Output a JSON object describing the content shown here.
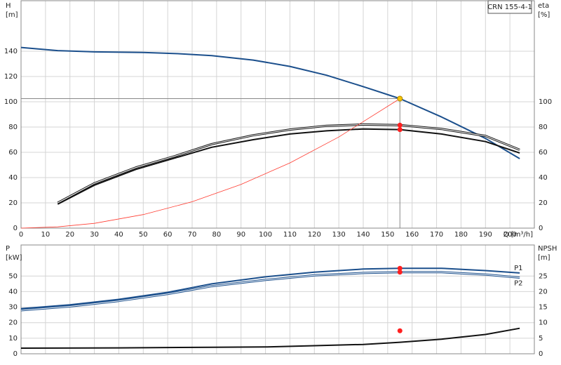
{
  "chart_data": [
    {
      "type": "line",
      "model": "CRN 155-4-1",
      "x_label": "Q [m³/h]",
      "y_label": [
        "H",
        "[m]"
      ],
      "y2_label": [
        "eta",
        "[%]"
      ],
      "xlim": [
        0,
        210
      ],
      "ylim": [
        0,
        180
      ],
      "y2lim": [
        0,
        180
      ],
      "xticks": [
        0,
        10,
        20,
        30,
        40,
        50,
        60,
        70,
        80,
        90,
        100,
        110,
        120,
        130,
        140,
        150,
        160,
        170,
        180,
        190,
        200
      ],
      "yticks": [
        0,
        20,
        40,
        60,
        80,
        100,
        120,
        140
      ],
      "y2ticks": [
        0,
        20,
        40,
        60,
        80,
        100
      ],
      "grid": true,
      "series": [
        {
          "color": "#1b4f8c",
          "width": 2,
          "style": "solid",
          "x": [
            0,
            15,
            30,
            50,
            65,
            78,
            95,
            110,
            125,
            140,
            155,
            172,
            190,
            204
          ],
          "values": [
            143,
            140.5,
            139.5,
            139,
            138,
            136.5,
            133,
            128,
            121,
            112,
            102.5,
            88,
            71,
            55
          ]
        },
        {
          "color": "#111111",
          "width": 3,
          "style": "double",
          "axis": "y2",
          "x": [
            15,
            30,
            47,
            63,
            78,
            95,
            110,
            125,
            140,
            155,
            172,
            190,
            204
          ],
          "values": [
            20,
            35.5,
            48,
            57,
            66.5,
            73.5,
            78,
            81,
            82,
            81.5,
            78.5,
            73,
            62
          ]
        },
        {
          "color": "#111111",
          "width": 2,
          "style": "solid",
          "axis": "y2",
          "x": [
            15,
            30,
            47,
            63,
            78,
            95,
            110,
            125,
            140,
            155,
            172,
            190,
            204
          ],
          "values": [
            19,
            34,
            46.5,
            55.5,
            64,
            70,
            74.5,
            77,
            78.5,
            78,
            74.5,
            68.5,
            59.5
          ]
        },
        {
          "color": "#ff3b30",
          "width": 0.8,
          "style": "solid",
          "x": [
            0,
            15,
            30,
            50,
            70,
            90,
            110,
            130,
            155
          ],
          "values": [
            0,
            1,
            3.8,
            10.7,
            20.9,
            34.6,
            51.6,
            72.1,
            102.5
          ]
        }
      ],
      "points": [
        {
          "x": 155,
          "y": 102.5,
          "color": "#f5c400",
          "guides": true
        },
        {
          "x": 155,
          "y": 81.5,
          "color": "#ff2020"
        },
        {
          "x": 155,
          "y": 78,
          "color": "#ff2020"
        }
      ]
    },
    {
      "type": "line",
      "y_label": [
        "P",
        "[kW]"
      ],
      "y2_label": [
        "NPSH",
        "[m]"
      ],
      "xlim": [
        0,
        210
      ],
      "ylim": [
        0,
        70
      ],
      "y2lim": [
        0,
        35
      ],
      "xticks": [
        0,
        10,
        20,
        30,
        40,
        50,
        60,
        70,
        80,
        90,
        100,
        110,
        120,
        130,
        140,
        150,
        160,
        170,
        180,
        190,
        200
      ],
      "yticks": [
        0,
        10,
        20,
        30,
        40,
        50
      ],
      "y2ticks": [
        0,
        5,
        10,
        15,
        20,
        25
      ],
      "grid": true,
      "series": [
        {
          "name": "P1",
          "color": "#1b4f8c",
          "width": 2,
          "style": "solid",
          "x": [
            0,
            20,
            40,
            60,
            78,
            100,
            120,
            140,
            155,
            172,
            190,
            204
          ],
          "values": [
            29,
            31.5,
            35,
            39.5,
            45,
            49.5,
            52.5,
            54.5,
            55,
            55,
            53.5,
            52
          ]
        },
        {
          "name": "P2",
          "color": "#1b4f8c",
          "width": 3,
          "style": "double",
          "x": [
            0,
            20,
            40,
            60,
            78,
            100,
            120,
            140,
            155,
            172,
            190,
            204
          ],
          "values": [
            28,
            30.5,
            34,
            38.5,
            43.5,
            47.5,
            50.5,
            52,
            52.5,
            52.5,
            51,
            49
          ]
        },
        {
          "color": "#111111",
          "width": 2,
          "style": "solid",
          "axis": "y2",
          "x": [
            0,
            40,
            78,
            100,
            120,
            140,
            155,
            172,
            190,
            204
          ],
          "values": [
            1.8,
            1.9,
            2.1,
            2.2,
            2.6,
            3,
            3.7,
            4.7,
            6.2,
            8.2
          ]
        }
      ],
      "points": [
        {
          "x": 155,
          "y": 55,
          "color": "#ff2020"
        },
        {
          "x": 155,
          "y": 52.5,
          "color": "#ff2020"
        },
        {
          "x": 155,
          "y": 7.4,
          "color": "#ff2020"
        }
      ]
    }
  ]
}
